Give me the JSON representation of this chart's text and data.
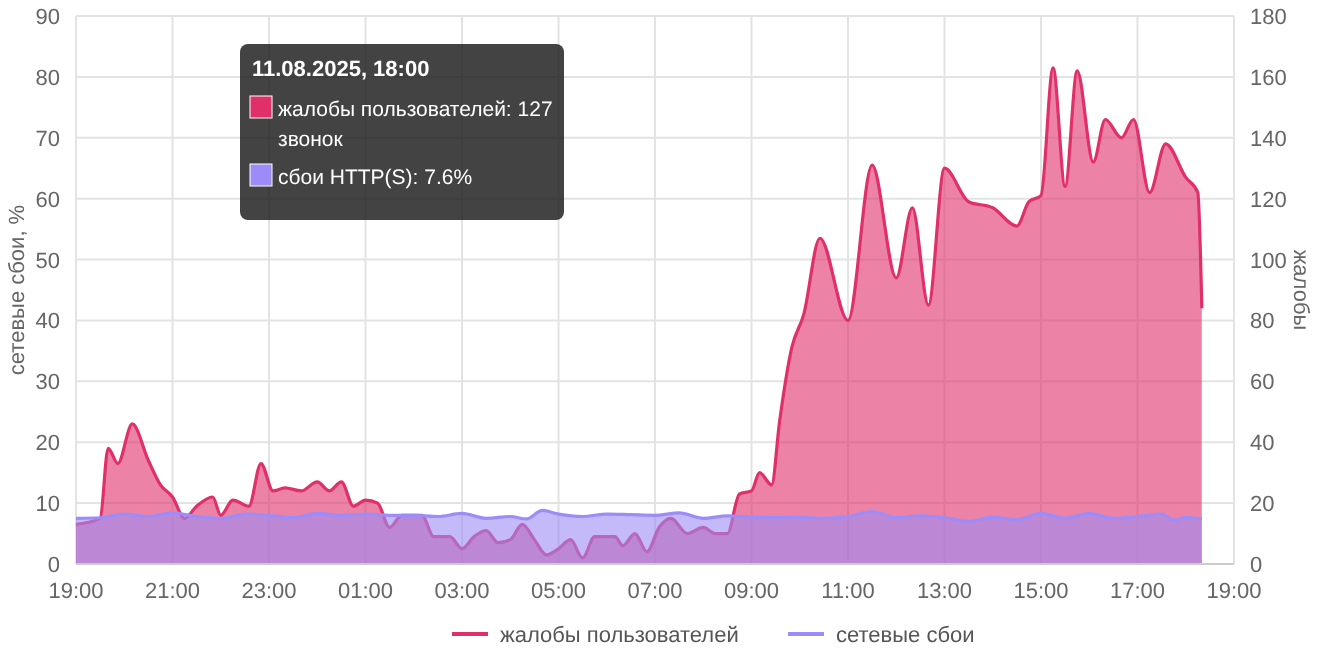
{
  "chart_data": {
    "type": "area",
    "ylabel": "сетевые сбои, %",
    "y2label": "жалобы",
    "xlim": [
      "2025-08-10T19:00",
      "2025-08-11T19:00"
    ],
    "xticks": [
      {
        "value": "2025-08-10T19:00",
        "label": "19:00"
      },
      {
        "value": "2025-08-10T21:00",
        "label": "21:00"
      },
      {
        "value": "2025-08-10T23:00",
        "label": "23:00"
      },
      {
        "value": "2025-08-11T01:00",
        "label": "01:00"
      },
      {
        "value": "2025-08-11T03:00",
        "label": "03:00"
      },
      {
        "value": "2025-08-11T05:00",
        "label": "05:00"
      },
      {
        "value": "2025-08-11T07:00",
        "label": "07:00"
      },
      {
        "value": "2025-08-11T09:00",
        "label": "09:00"
      },
      {
        "value": "2025-08-11T11:00",
        "label": "11:00"
      },
      {
        "value": "2025-08-11T13:00",
        "label": "13:00"
      },
      {
        "value": "2025-08-11T15:00",
        "label": "15:00"
      },
      {
        "value": "2025-08-11T17:00",
        "label": "17:00"
      },
      {
        "value": "2025-08-11T19:00",
        "label": "19:00"
      }
    ],
    "ylim": [
      0,
      90
    ],
    "yticks": [
      0,
      10,
      20,
      30,
      40,
      50,
      60,
      70,
      80,
      90
    ],
    "y2lim": [
      0,
      180
    ],
    "y2ticks": [
      0,
      20,
      40,
      60,
      80,
      100,
      120,
      140,
      160,
      180
    ],
    "grid": true,
    "legend": "bottom",
    "marker": "none",
    "line_style": "solid",
    "series": [
      {
        "name": "жалобы пользователей",
        "color": "#e0306a",
        "axis": "y2",
        "x": [
          "2025-08-10T19:00",
          "2025-08-10T19:30",
          "2025-08-10T19:40",
          "2025-08-10T19:52",
          "2025-08-10T20:10",
          "2025-08-10T20:30",
          "2025-08-10T20:45",
          "2025-08-10T21:00",
          "2025-08-10T21:15",
          "2025-08-10T21:30",
          "2025-08-10T21:50",
          "2025-08-10T22:00",
          "2025-08-10T22:15",
          "2025-08-10T22:35",
          "2025-08-10T22:50",
          "2025-08-10T23:05",
          "2025-08-10T23:20",
          "2025-08-10T23:40",
          "2025-08-11T00:00",
          "2025-08-11T00:15",
          "2025-08-11T00:30",
          "2025-08-11T00:45",
          "2025-08-11T01:00",
          "2025-08-11T01:15",
          "2025-08-11T01:30",
          "2025-08-11T01:45",
          "2025-08-11T02:10",
          "2025-08-11T02:25",
          "2025-08-11T02:45",
          "2025-08-11T03:00",
          "2025-08-11T03:15",
          "2025-08-11T03:30",
          "2025-08-11T03:45",
          "2025-08-11T04:00",
          "2025-08-11T04:15",
          "2025-08-11T04:30",
          "2025-08-11T04:45",
          "2025-08-11T05:00",
          "2025-08-11T05:15",
          "2025-08-11T05:30",
          "2025-08-11T05:45",
          "2025-08-11T06:10",
          "2025-08-11T06:20",
          "2025-08-11T06:35",
          "2025-08-11T06:50",
          "2025-08-11T07:05",
          "2025-08-11T07:20",
          "2025-08-11T07:40",
          "2025-08-11T08:00",
          "2025-08-11T08:15",
          "2025-08-11T08:30",
          "2025-08-11T08:45",
          "2025-08-11T09:00",
          "2025-08-11T09:10",
          "2025-08-11T09:25",
          "2025-08-11T09:35",
          "2025-08-11T09:50",
          "2025-08-11T10:05",
          "2025-08-11T10:25",
          "2025-08-11T11:00",
          "2025-08-11T11:30",
          "2025-08-11T12:00",
          "2025-08-11T12:20",
          "2025-08-11T12:40",
          "2025-08-11T13:00",
          "2025-08-11T13:30",
          "2025-08-11T14:00",
          "2025-08-11T14:30",
          "2025-08-11T14:45",
          "2025-08-11T15:00",
          "2025-08-11T15:15",
          "2025-08-11T15:30",
          "2025-08-11T15:45",
          "2025-08-11T16:05",
          "2025-08-11T16:20",
          "2025-08-11T16:40",
          "2025-08-11T16:55",
          "2025-08-11T17:15",
          "2025-08-11T17:35",
          "2025-08-11T18:00",
          "2025-08-11T18:15",
          "2025-08-11T18:20"
        ],
        "values": [
          13,
          15,
          38,
          33,
          46,
          34,
          26,
          22,
          15,
          19,
          22,
          16,
          21,
          19,
          33,
          24,
          25,
          24,
          27,
          24,
          27,
          19,
          21,
          20,
          12,
          16,
          16,
          9,
          9,
          5,
          9,
          11,
          7,
          8,
          13,
          8,
          3,
          5,
          8,
          2,
          9,
          9,
          6,
          10,
          4,
          12,
          15,
          10,
          12,
          10,
          10,
          23,
          24,
          30,
          26,
          47,
          71,
          82,
          107,
          80,
          131,
          94,
          117,
          85,
          130,
          119,
          117,
          111,
          119,
          121,
          163,
          124,
          162,
          132,
          146,
          140,
          146,
          122,
          138,
          127,
          122,
          84
        ]
      },
      {
        "name": "сетевые сбои",
        "color": "#9d8cf7",
        "x": [
          "2025-08-10T19:00",
          "2025-08-10T19:30",
          "2025-08-10T20:00",
          "2025-08-10T20:30",
          "2025-08-10T21:00",
          "2025-08-10T21:30",
          "2025-08-10T22:00",
          "2025-08-10T22:30",
          "2025-08-10T23:00",
          "2025-08-10T23:30",
          "2025-08-11T00:00",
          "2025-08-11T00:30",
          "2025-08-11T01:00",
          "2025-08-11T01:30",
          "2025-08-11T02:00",
          "2025-08-11T02:30",
          "2025-08-11T03:00",
          "2025-08-11T03:30",
          "2025-08-11T04:00",
          "2025-08-11T04:20",
          "2025-08-11T04:40",
          "2025-08-11T05:00",
          "2025-08-11T05:30",
          "2025-08-11T06:00",
          "2025-08-11T06:30",
          "2025-08-11T07:00",
          "2025-08-11T07:30",
          "2025-08-11T08:00",
          "2025-08-11T08:30",
          "2025-08-11T09:00",
          "2025-08-11T09:30",
          "2025-08-11T10:00",
          "2025-08-11T10:30",
          "2025-08-11T11:00",
          "2025-08-11T11:30",
          "2025-08-11T12:00",
          "2025-08-11T12:30",
          "2025-08-11T13:00",
          "2025-08-11T13:30",
          "2025-08-11T14:00",
          "2025-08-11T14:30",
          "2025-08-11T15:00",
          "2025-08-11T15:30",
          "2025-08-11T16:00",
          "2025-08-11T16:30",
          "2025-08-11T17:00",
          "2025-08-11T17:30",
          "2025-08-11T17:45",
          "2025-08-11T18:00",
          "2025-08-11T18:20"
        ],
        "values": [
          7.5,
          7.6,
          8.2,
          7.8,
          8.4,
          7.8,
          7.5,
          8.2,
          8.0,
          7.6,
          8.3,
          8.0,
          8.2,
          8.0,
          8.0,
          7.8,
          8.3,
          7.5,
          7.8,
          7.4,
          8.8,
          8.2,
          7.8,
          8.2,
          8.1,
          8.0,
          8.4,
          7.5,
          7.9,
          7.7,
          7.6,
          7.7,
          7.5,
          7.8,
          8.6,
          7.6,
          7.9,
          7.6,
          7.0,
          7.7,
          7.3,
          8.3,
          7.5,
          8.3,
          7.5,
          7.8,
          8.2,
          7.2,
          7.6,
          7.4
        ]
      }
    ],
    "annotations": [
      "11.08.2025, 18:00",
      "жалобы пользователей: 127 звонок",
      "сбои HTTP(S): 7.6%"
    ]
  }
}
